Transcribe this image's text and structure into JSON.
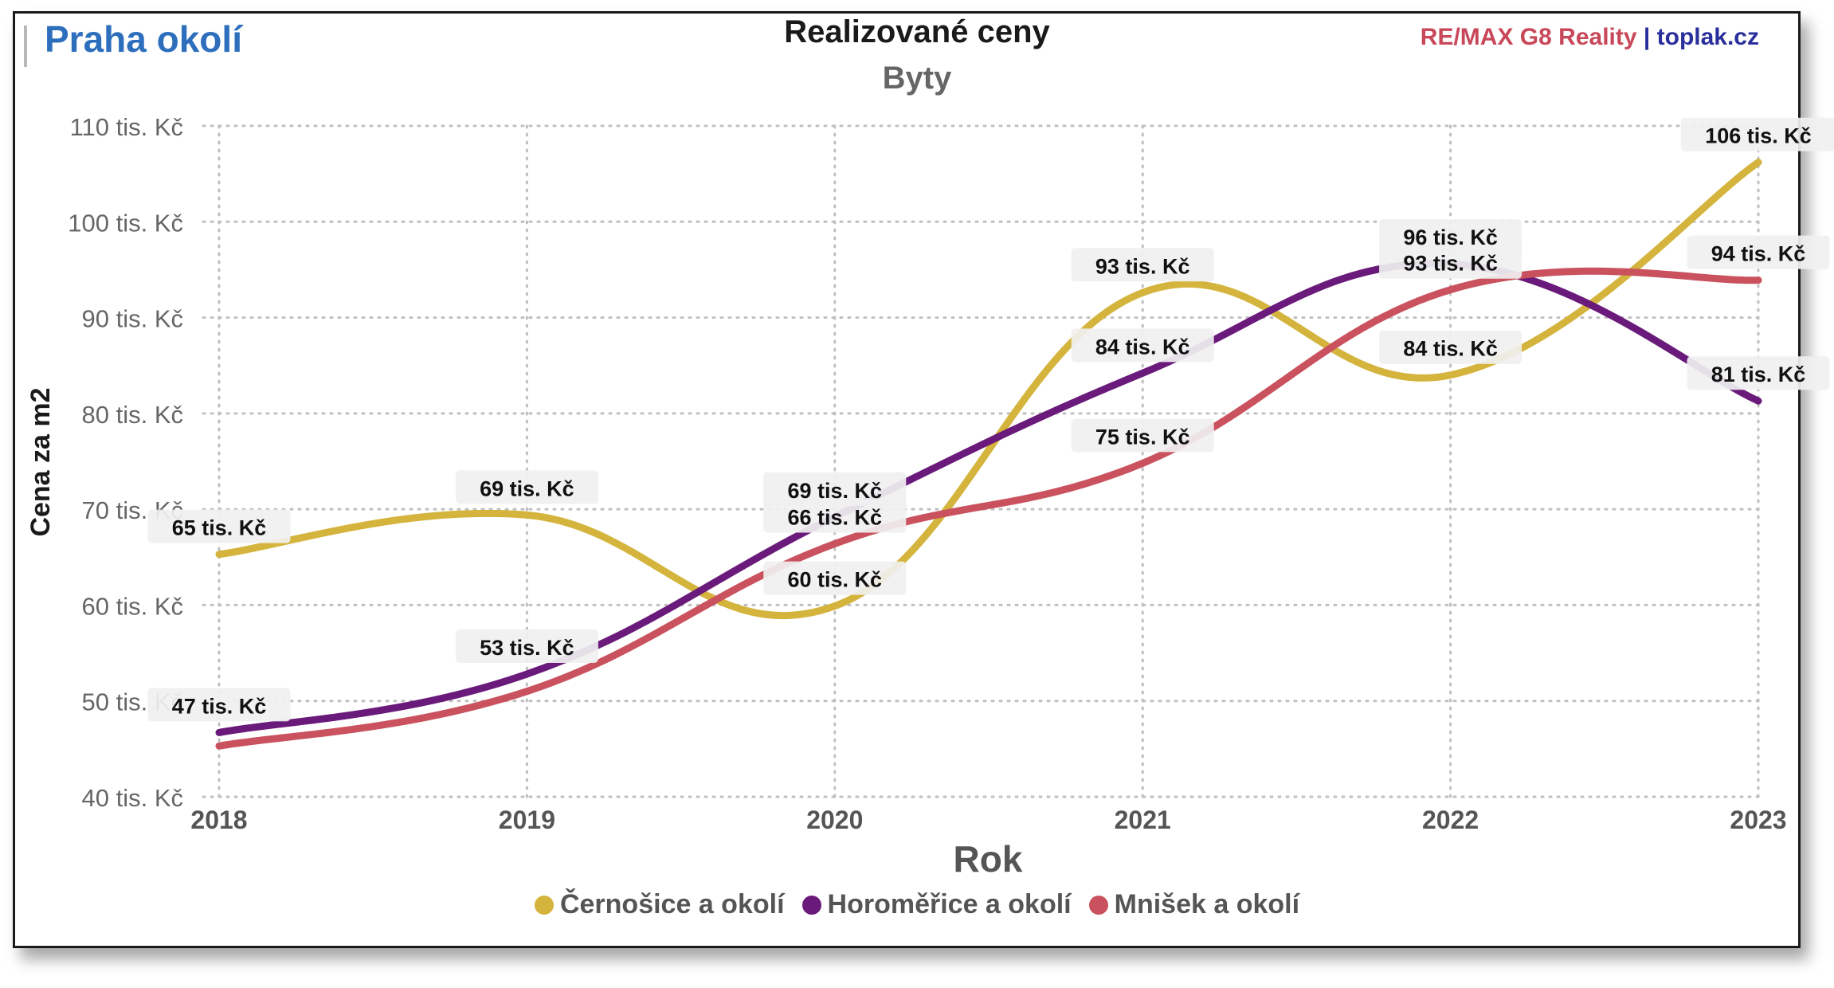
{
  "header": {
    "region_title": "Praha okolí",
    "brand_remax": "RE/MAX G8 Reality",
    "brand_separator": " | ",
    "brand_site": "toplak.cz"
  },
  "chart_data": {
    "type": "line",
    "title": "Realizované ceny",
    "subtitle": "Byty",
    "xlabel": "Rok",
    "ylabel": "Cena za m2",
    "categories": [
      "2018",
      "2019",
      "2020",
      "2021",
      "2022",
      "2023"
    ],
    "ylim": [
      40,
      110
    ],
    "yticks": [
      40,
      50,
      60,
      70,
      80,
      90,
      100,
      110
    ],
    "ytick_suffix": " tis. Kč",
    "label_suffix": " tis. Kč",
    "grid": true,
    "legend_position": "bottom-center",
    "series": [
      {
        "name": "Černošice a okolí",
        "color": "#d4b43c",
        "values": [
          65.3,
          69.4,
          59.9,
          92.6,
          84.0,
          106.2
        ],
        "labels": [
          "65",
          "69",
          "60",
          "93",
          "84",
          "106"
        ]
      },
      {
        "name": "Horoměřice a okolí",
        "color": "#6a1a7a",
        "values": [
          46.7,
          52.8,
          69.2,
          84.2,
          95.6,
          81.3
        ],
        "labels": [
          "47",
          "53",
          "69",
          "84",
          "96",
          "81"
        ]
      },
      {
        "name": "Mnišek a okolí",
        "color": "#c9525e",
        "values": [
          45.3,
          51.0,
          66.4,
          74.8,
          92.9,
          93.9
        ],
        "labels": [
          "",
          "",
          "66",
          "75",
          "93",
          "94"
        ]
      }
    ]
  }
}
